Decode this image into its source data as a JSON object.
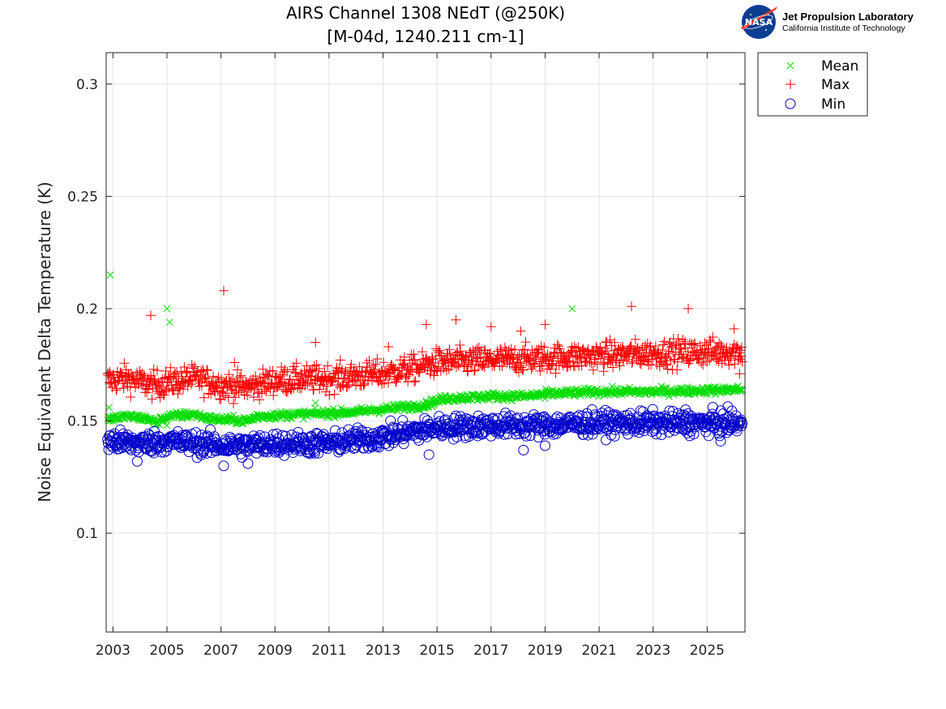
{
  "logo": {
    "org_name": "Jet Propulsion Laboratory",
    "org_sub": "California Institute of Technology",
    "badge_text": "NASA",
    "badge_color": "#0b3d91",
    "swoosh_color": "#fc3d21"
  },
  "chart_data": {
    "type": "scatter",
    "title": "AIRS Channel 1308 NEdT (@250K)",
    "subtitle": "[M-04d, 1240.211 cm-1]",
    "xlabel": "",
    "ylabel": "Noise Equivalent Delta Temperature (K)",
    "xlim": [
      2002.75,
      2026.4
    ],
    "ylim": [
      0.056,
      0.314
    ],
    "x_ticks": [
      2003,
      2005,
      2007,
      2009,
      2011,
      2013,
      2015,
      2017,
      2019,
      2021,
      2023,
      2025
    ],
    "x_tick_labels": [
      "2003",
      "2005",
      "2007",
      "2009",
      "2011",
      "2013",
      "2015",
      "2017",
      "2019",
      "2021",
      "2023",
      "2025"
    ],
    "y_ticks": [
      0.1,
      0.15,
      0.2,
      0.25,
      0.3
    ],
    "y_tick_labels": [
      "0.1",
      "0.15",
      "0.2",
      "0.25",
      "0.3"
    ],
    "grid": true,
    "legend_position": "outside-top-right",
    "series": [
      {
        "name": "Mean",
        "marker": "x",
        "color": "#00dd00",
        "trend": [
          [
            2002.8,
            0.151
          ],
          [
            2003.5,
            0.152
          ],
          [
            2004.3,
            0.151
          ],
          [
            2004.6,
            0.149
          ],
          [
            2005.0,
            0.152
          ],
          [
            2006.0,
            0.153
          ],
          [
            2006.6,
            0.151
          ],
          [
            2008.0,
            0.15
          ],
          [
            2008.3,
            0.152
          ],
          [
            2010.0,
            0.153
          ],
          [
            2012.0,
            0.154
          ],
          [
            2014.5,
            0.157
          ],
          [
            2015.3,
            0.16
          ],
          [
            2017.0,
            0.161
          ],
          [
            2018.3,
            0.161
          ],
          [
            2019.0,
            0.162
          ],
          [
            2021.0,
            0.163
          ],
          [
            2023.0,
            0.163
          ],
          [
            2026.3,
            0.164
          ]
        ],
        "outliers": [
          [
            2002.9,
            0.215
          ],
          [
            2002.85,
            0.156
          ],
          [
            2005.0,
            0.2
          ],
          [
            2005.1,
            0.194
          ],
          [
            2020.0,
            0.2
          ],
          [
            2010.5,
            0.158
          ],
          [
            2005.0,
            0.148
          ],
          [
            2014.5,
            0.156
          ],
          [
            2016.5,
            0.159
          ],
          [
            2019.0,
            0.16
          ]
        ],
        "spread": 0.0012
      },
      {
        "name": "Max",
        "marker": "+",
        "color": "#ff0000",
        "trend": [
          [
            2002.8,
            0.168
          ],
          [
            2003.5,
            0.169
          ],
          [
            2004.4,
            0.166
          ],
          [
            2005.0,
            0.167
          ],
          [
            2006.0,
            0.169
          ],
          [
            2007.0,
            0.166
          ],
          [
            2008.0,
            0.165
          ],
          [
            2009.0,
            0.168
          ],
          [
            2011.0,
            0.169
          ],
          [
            2013.0,
            0.171
          ],
          [
            2014.0,
            0.173
          ],
          [
            2015.0,
            0.176
          ],
          [
            2017.0,
            0.177
          ],
          [
            2019.0,
            0.178
          ],
          [
            2021.0,
            0.179
          ],
          [
            2023.0,
            0.18
          ],
          [
            2026.3,
            0.181
          ]
        ],
        "outliers": [
          [
            2007.1,
            0.208
          ],
          [
            2004.4,
            0.197
          ],
          [
            2022.2,
            0.201
          ],
          [
            2024.3,
            0.2
          ],
          [
            2015.7,
            0.195
          ],
          [
            2014.6,
            0.193
          ],
          [
            2019.0,
            0.193
          ],
          [
            2017.0,
            0.192
          ],
          [
            2010.5,
            0.185
          ],
          [
            2013.2,
            0.183
          ],
          [
            2018.1,
            0.19
          ],
          [
            2026.0,
            0.191
          ],
          [
            2007.5,
            0.176
          ],
          [
            2026.2,
            0.171
          ]
        ],
        "spread": 0.0042
      },
      {
        "name": "Min",
        "marker": "o",
        "color": "#0000cc",
        "trend": [
          [
            2002.8,
            0.141
          ],
          [
            2004.0,
            0.14
          ],
          [
            2005.0,
            0.141
          ],
          [
            2006.0,
            0.14
          ],
          [
            2007.0,
            0.139
          ],
          [
            2008.0,
            0.139
          ],
          [
            2009.0,
            0.14
          ],
          [
            2011.0,
            0.14
          ],
          [
            2013.0,
            0.143
          ],
          [
            2015.0,
            0.147
          ],
          [
            2017.0,
            0.148
          ],
          [
            2019.0,
            0.148
          ],
          [
            2021.0,
            0.149
          ],
          [
            2023.0,
            0.149
          ],
          [
            2026.3,
            0.149
          ]
        ],
        "outliers": [
          [
            2007.1,
            0.13
          ],
          [
            2008.0,
            0.131
          ],
          [
            2003.9,
            0.132
          ],
          [
            2014.7,
            0.135
          ],
          [
            2018.2,
            0.137
          ],
          [
            2024.2,
            0.155
          ],
          [
            2019.0,
            0.139
          ],
          [
            2025.5,
            0.141
          ]
        ],
        "spread": 0.0035
      }
    ]
  }
}
